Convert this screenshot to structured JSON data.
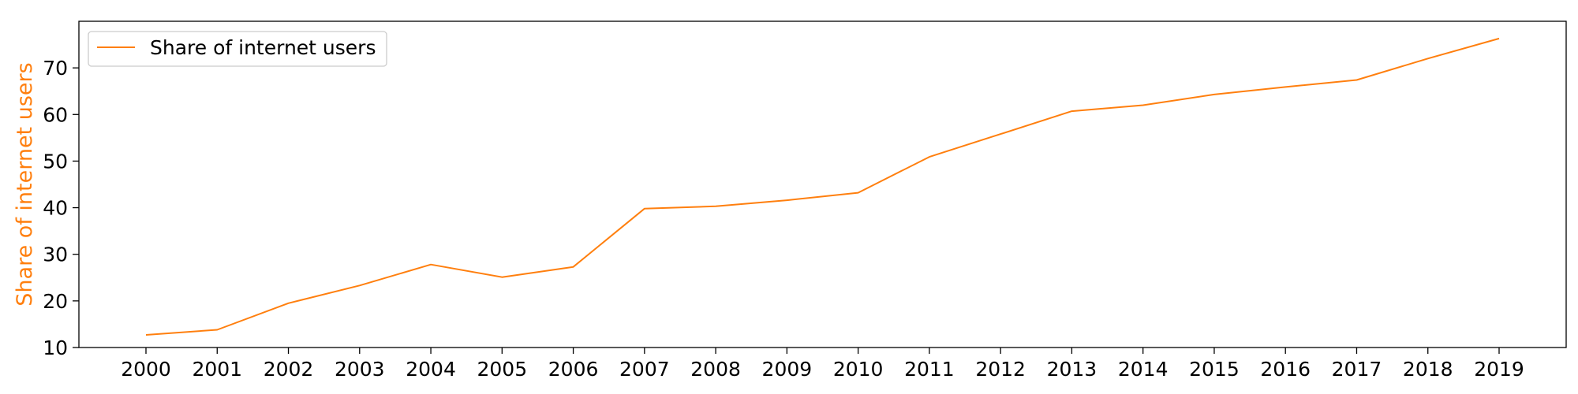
{
  "chart_data": {
    "type": "line",
    "title": "",
    "xlabel": "",
    "ylabel": "Share of internet users",
    "ylim": [
      10,
      80
    ],
    "yticks": [
      10,
      20,
      30,
      40,
      50,
      60,
      70
    ],
    "grid": false,
    "legend_position": "top-left",
    "x": [
      "2000",
      "2001",
      "2002",
      "2003",
      "2004",
      "2005",
      "2006",
      "2007",
      "2008",
      "2009",
      "2010",
      "2011",
      "2012",
      "2013",
      "2014",
      "2015",
      "2016",
      "2017",
      "2018",
      "2019"
    ],
    "series": [
      {
        "name": "Share of internet users",
        "color": "#ff7f0e",
        "values": [
          12.7,
          13.8,
          19.5,
          23.3,
          27.8,
          25.1,
          27.3,
          39.8,
          40.3,
          41.6,
          43.2,
          50.9,
          55.8,
          60.7,
          62.0,
          64.3,
          65.9,
          67.4,
          72.0,
          76.3
        ]
      }
    ]
  }
}
